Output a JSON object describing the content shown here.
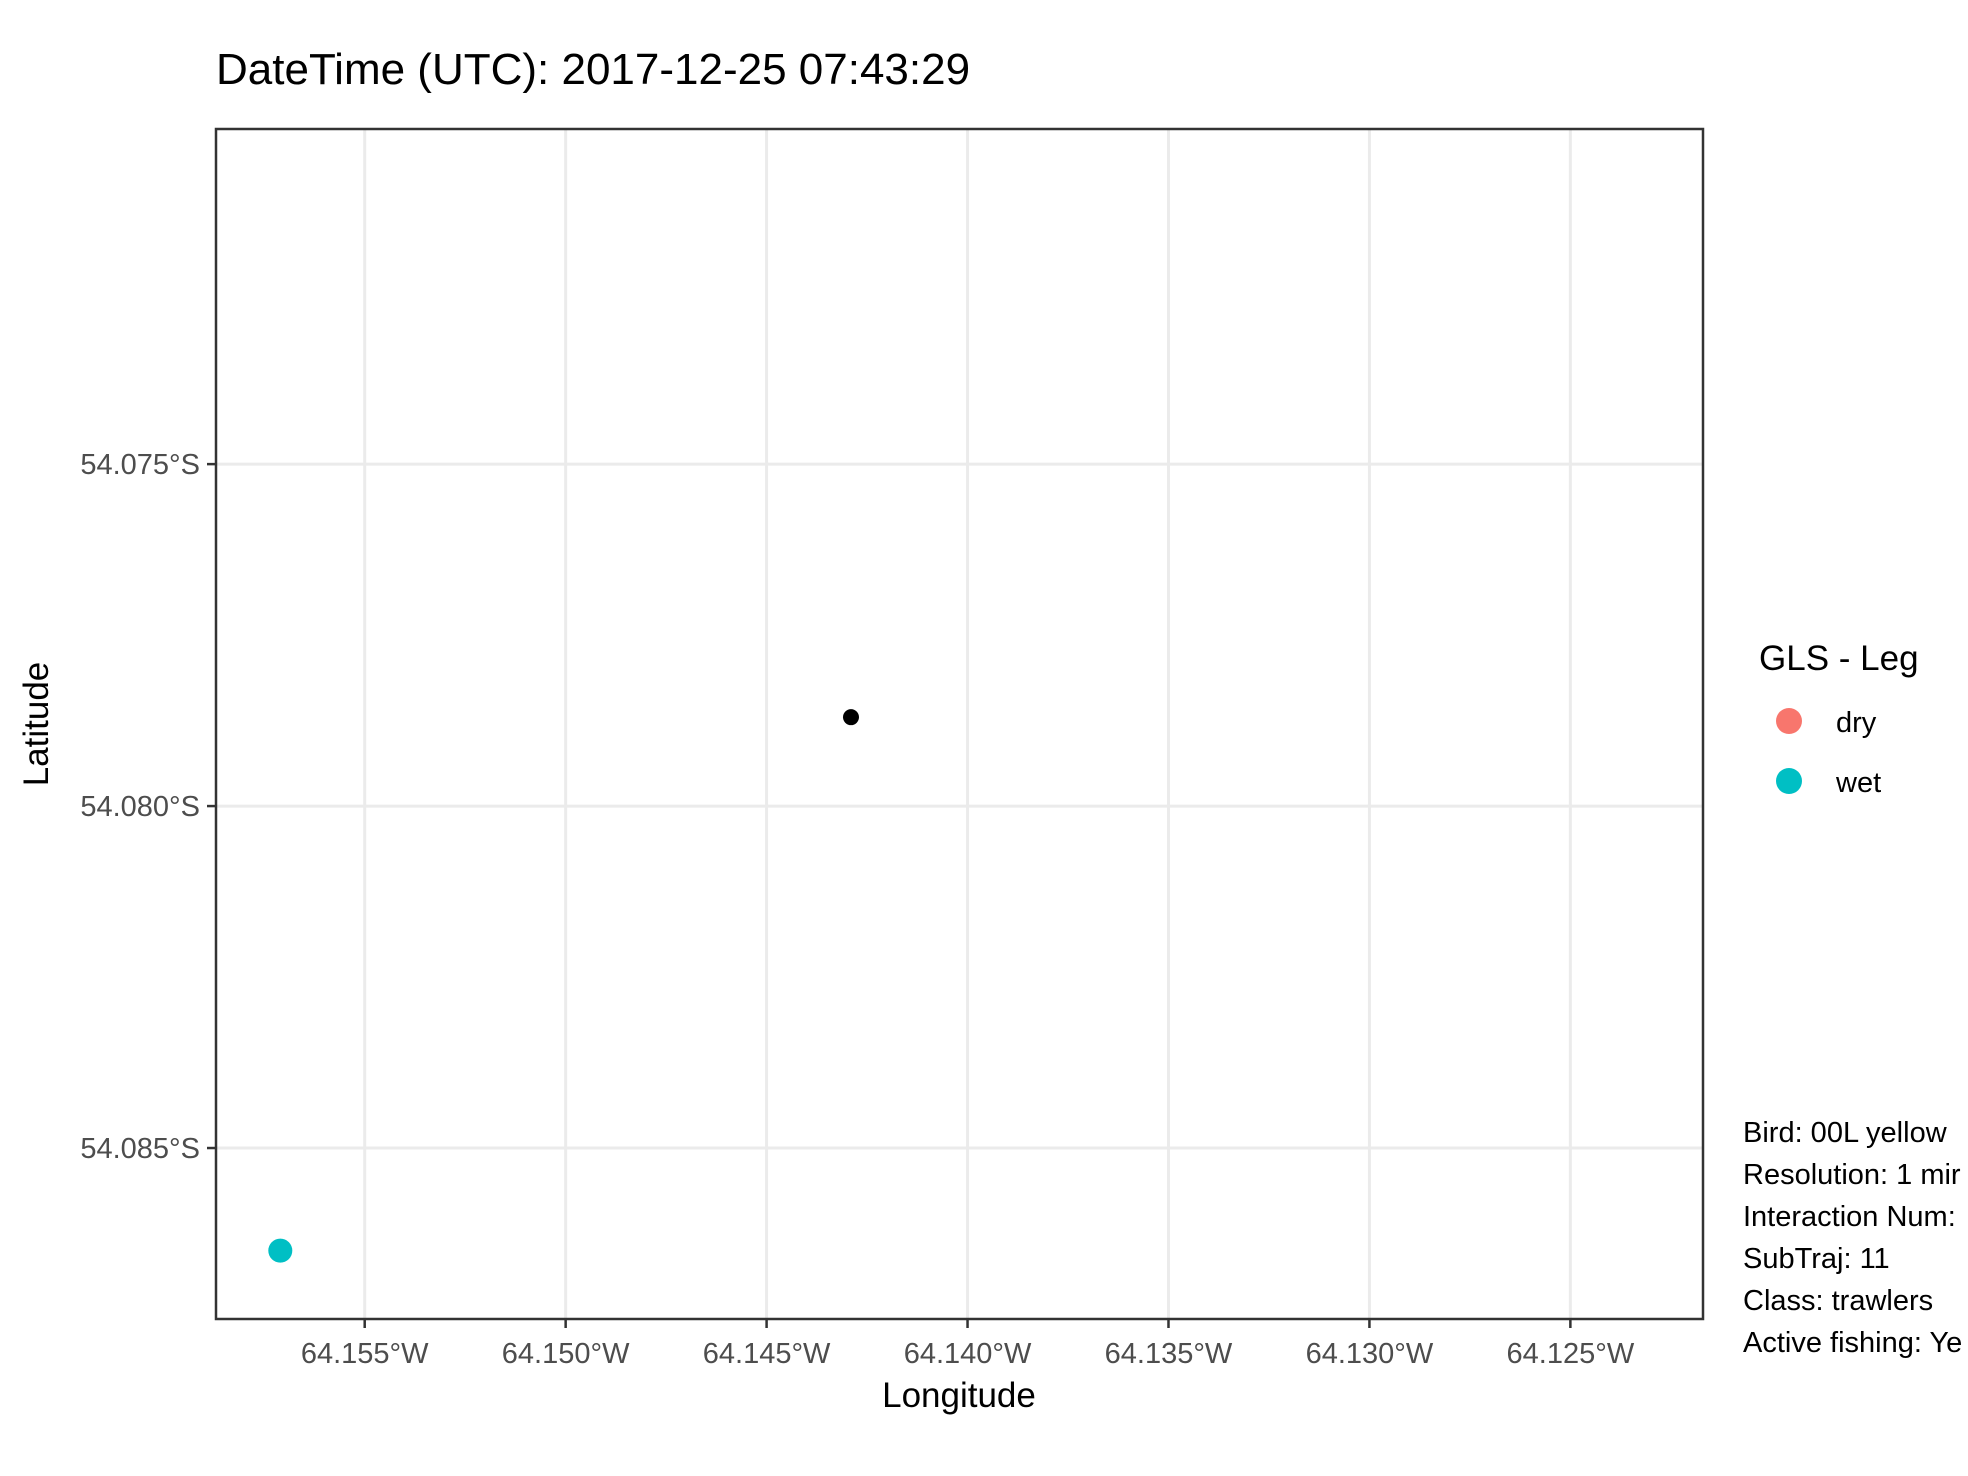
{
  "chart_data": {
    "type": "scatter",
    "title": "DateTime (UTC): 2017-12-25 07:43:29",
    "xlabel": "Longitude",
    "ylabel": "Latitude",
    "xlim": [
      -64.1587,
      -64.1217
    ],
    "ylim": [
      -54.0875,
      -54.0701
    ],
    "x_ticks": [
      -64.155,
      -64.15,
      -64.145,
      -64.14,
      -64.135,
      -64.13,
      -64.125
    ],
    "x_tick_labels": [
      "64.155°W",
      "64.150°W",
      "64.145°W",
      "64.140°W",
      "64.135°W",
      "64.130°W",
      "64.125°W"
    ],
    "y_ticks": [
      -54.075,
      -54.08,
      -54.085
    ],
    "y_tick_labels": [
      "54.075°S",
      "54.080°S",
      "54.085°S"
    ],
    "grid": true,
    "legend": {
      "title": "GLS - Leg",
      "position": "right",
      "entries": [
        {
          "label": "dry",
          "color": "#f8766d"
        },
        {
          "label": "wet",
          "color": "#00bfc4"
        }
      ]
    },
    "series": [
      {
        "name": "wet",
        "color": "#00bfc4",
        "points": [
          {
            "x": -64.1571,
            "y": -54.0865
          }
        ]
      },
      {
        "color": "#000000",
        "points": [
          {
            "x": -64.1429,
            "y": -54.0787
          }
        ]
      }
    ],
    "annotations": [
      "Bird: 00L yellow",
      "Resolution: 1 mir",
      "Interaction Num:",
      "SubTraj: 11",
      "Class: trawlers",
      "Active fishing: Ye"
    ]
  }
}
